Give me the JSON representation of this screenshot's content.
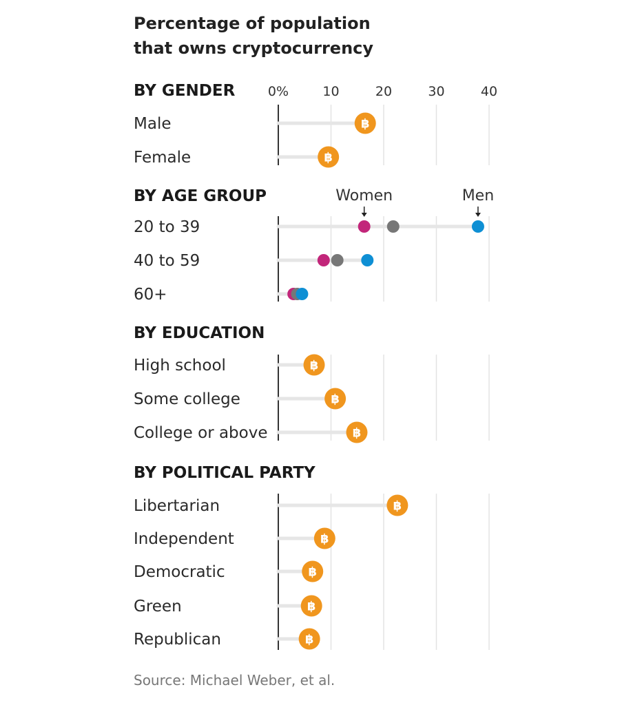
{
  "chart_data": {
    "type": "lollipop",
    "title_lines": [
      "Percentage of population",
      "that owns cryptocurrency"
    ],
    "xaxis": {
      "range": [
        0,
        40
      ],
      "ticks": [
        0,
        10,
        20,
        30,
        40
      ],
      "tick_labels": [
        "0%",
        "10",
        "20",
        "30",
        "40"
      ]
    },
    "marker_symbol": "฿",
    "colors": {
      "bitcoin": "#F0961E",
      "women": "#C2267A",
      "all": "#777777",
      "men": "#0E8FD4"
    },
    "sections": [
      {
        "title": "BY GENDER",
        "rows": [
          {
            "label": "Male",
            "value": 16.5
          },
          {
            "label": "Female",
            "value": 9.5
          }
        ]
      },
      {
        "title": "BY AGE GROUP",
        "annotations": {
          "women": "Women",
          "men": "Men"
        },
        "rows": [
          {
            "label": "20 to 39",
            "women": 16.3,
            "all": 21.8,
            "men": 37.9
          },
          {
            "label": "40 to 59",
            "women": 8.6,
            "all": 11.2,
            "men": 16.9
          },
          {
            "label": "60+",
            "women": 2.9,
            "all": 3.6,
            "men": 4.5
          }
        ]
      },
      {
        "title": "BY EDUCATION",
        "rows": [
          {
            "label": "High school",
            "value": 6.8
          },
          {
            "label": "Some college",
            "value": 10.8
          },
          {
            "label": "College or above",
            "value": 14.9
          }
        ]
      },
      {
        "title": "BY POLITICAL PARTY",
        "rows": [
          {
            "label": "Libertarian",
            "value": 22.6
          },
          {
            "label": "Independent",
            "value": 8.8
          },
          {
            "label": "Democratic",
            "value": 6.5
          },
          {
            "label": "Green",
            "value": 6.3
          },
          {
            "label": "Republican",
            "value": 5.9
          }
        ]
      }
    ],
    "source": "Source: Michael Weber, et al."
  }
}
